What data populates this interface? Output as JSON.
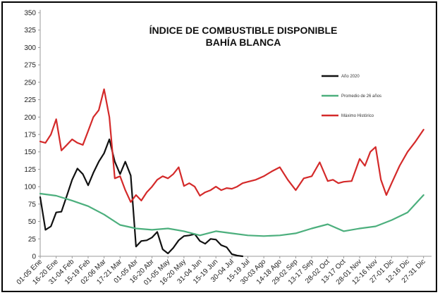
{
  "chart_data": {
    "type": "line",
    "title": "ÍNDICE DE COMBUSTIBLE DISPONIBLE",
    "subtitle": "BAHÍA BLANCA",
    "ylim": [
      0,
      350
    ],
    "yticks": [
      0,
      25,
      50,
      75,
      100,
      125,
      150,
      175,
      200,
      225,
      250,
      275,
      300,
      325,
      350
    ],
    "categories": [
      "01-05 Ene",
      "16-20 Ene",
      "31-04 Feb",
      "15-19 Feb",
      "02-06 Mar",
      "17-21 Mar",
      "01-05 Abr",
      "16-20 Abr",
      "01-05 May",
      "16-20 May",
      "31-04 Jun",
      "15-19 Jun",
      "30-04 Jul",
      "15-19 Jul",
      "30-03 Ago",
      "14-18 Ago",
      "29-02 Sep",
      "13-17 Sep",
      "28-02 Oct",
      "13-17 Oct",
      "28-01 Nov",
      "12-16 Nov",
      "27-01 Dic",
      "12-16 Dic",
      "27-31 Dic"
    ],
    "grid": false,
    "legend_position": "right",
    "series": [
      {
        "name": "Año 2020",
        "color": "#111111",
        "x": [
          0,
          0.33,
          0.67,
          1,
          1.33,
          1.67,
          2,
          2.33,
          2.67,
          3,
          3.33,
          3.67,
          4,
          4.33,
          4.67,
          5,
          5.33,
          5.67,
          6,
          6.33,
          6.67,
          7,
          7.33,
          7.67,
          8,
          8.33,
          8.67,
          9,
          9.33,
          9.67,
          10,
          10.33,
          10.67,
          11,
          11.33,
          11.67,
          12,
          12.33,
          12.67
        ],
        "values": [
          85,
          38,
          43,
          63,
          64,
          87,
          110,
          126,
          118,
          102,
          120,
          136,
          148,
          168,
          136,
          118,
          136,
          116,
          14,
          22,
          23,
          27,
          35,
          10,
          4,
          12,
          23,
          29,
          30,
          32,
          22,
          18,
          25,
          24,
          16,
          13,
          3,
          1,
          0
        ]
      },
      {
        "name": "Promedio de 26 años",
        "color": "#4caf7d",
        "x": [
          0,
          1,
          2,
          3,
          4,
          5,
          6,
          7,
          8,
          9,
          10,
          11,
          12,
          13,
          14,
          15,
          16,
          17,
          18,
          19,
          20,
          21,
          22,
          23,
          24
        ],
        "values": [
          90,
          87,
          80,
          72,
          60,
          45,
          40,
          38,
          40,
          36,
          30,
          36,
          33,
          30,
          29,
          30,
          33,
          40,
          46,
          36,
          40,
          43,
          52,
          63,
          88
        ]
      },
      {
        "name": "Máximo Histórico",
        "color": "#d42a2a",
        "x": [
          0,
          0.33,
          0.67,
          1,
          1.33,
          1.67,
          2,
          2.33,
          2.67,
          3,
          3.33,
          3.67,
          4,
          4.33,
          4.67,
          5,
          5.33,
          5.67,
          6,
          6.33,
          6.67,
          7,
          7.33,
          7.67,
          8,
          8.33,
          8.67,
          9,
          9.33,
          9.67,
          10,
          10.33,
          10.67,
          11,
          11.33,
          11.67,
          12,
          12.33,
          12.67,
          13,
          13.5,
          14,
          14.5,
          15,
          15.5,
          16,
          16.5,
          17,
          17.5,
          18,
          18.33,
          18.67,
          19,
          19.5,
          20,
          20.33,
          20.67,
          21,
          21.33,
          21.67,
          22,
          22.5,
          23,
          23.5,
          24
        ],
        "values": [
          165,
          163,
          175,
          197,
          152,
          160,
          168,
          163,
          160,
          180,
          200,
          210,
          240,
          200,
          112,
          115,
          95,
          78,
          88,
          80,
          92,
          100,
          110,
          115,
          112,
          118,
          128,
          101,
          105,
          100,
          87,
          92,
          95,
          100,
          95,
          98,
          97,
          100,
          105,
          107,
          110,
          115,
          122,
          128,
          110,
          95,
          112,
          115,
          135,
          108,
          110,
          105,
          107,
          108,
          140,
          130,
          150,
          157,
          110,
          88,
          105,
          130,
          150,
          165,
          182
        ]
      }
    ]
  }
}
